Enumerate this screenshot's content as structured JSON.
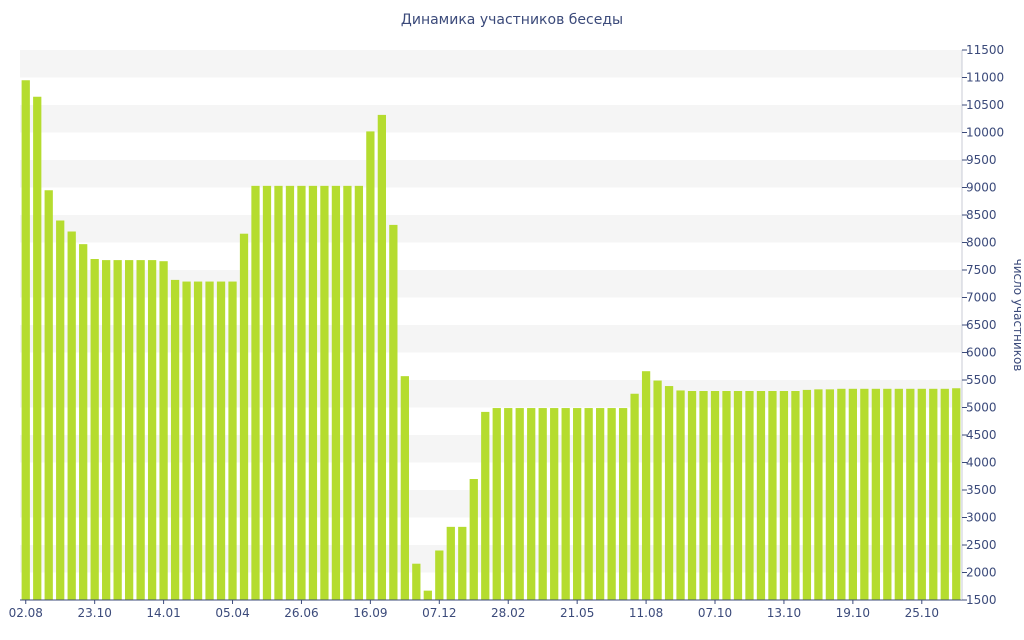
{
  "chart_data": {
    "type": "bar",
    "title": "Динамика участников беседы",
    "ylabel": "число участников",
    "xlabel": "",
    "ylim": [
      1500,
      11500
    ],
    "y_ticks": [
      1500,
      2000,
      2500,
      3000,
      3500,
      4000,
      4500,
      5000,
      5500,
      6000,
      6500,
      7000,
      7500,
      8000,
      8500,
      9000,
      9500,
      10000,
      10500,
      11000,
      11500
    ],
    "y_axis_side": "right",
    "x_tick_labels": [
      {
        "label": "02.08",
        "index": 0
      },
      {
        "label": "23.10",
        "index": 6
      },
      {
        "label": "14.01",
        "index": 12
      },
      {
        "label": "05.04",
        "index": 18
      },
      {
        "label": "26.06",
        "index": 24
      },
      {
        "label": "16.09",
        "index": 30
      },
      {
        "label": "07.12",
        "index": 36
      },
      {
        "label": "28.02",
        "index": 42
      },
      {
        "label": "21.05",
        "index": 48
      },
      {
        "label": "11.08",
        "index": 54
      },
      {
        "label": "07.10",
        "index": 60
      },
      {
        "label": "13.10",
        "index": 66
      },
      {
        "label": "19.10",
        "index": 72
      },
      {
        "label": "25.10",
        "index": 78
      }
    ],
    "values": [
      10950,
      10650,
      8950,
      8400,
      8200,
      7970,
      7700,
      7680,
      7680,
      7680,
      7680,
      7680,
      7660,
      7320,
      7290,
      7290,
      7290,
      7290,
      7290,
      8160,
      9030,
      9030,
      9030,
      9030,
      9030,
      9030,
      9030,
      9030,
      9030,
      9030,
      10020,
      10320,
      8320,
      5570,
      2160,
      1670,
      2400,
      2830,
      2830,
      3700,
      4920,
      4990,
      4990,
      4990,
      4990,
      4990,
      4990,
      4990,
      4990,
      4990,
      4990,
      4990,
      4990,
      5250,
      5660,
      5490,
      5390,
      5310,
      5300,
      5300,
      5300,
      5300,
      5300,
      5300,
      5300,
      5300,
      5300,
      5300,
      5320,
      5330,
      5330,
      5340,
      5340,
      5340,
      5340,
      5340,
      5340,
      5340,
      5340,
      5340,
      5340,
      5350
    ],
    "grid": true,
    "colors": {
      "bar": "#b5dc2f",
      "band": "#f5f5f5",
      "text": "#3b4a7a",
      "axis": "#3b4a7a"
    }
  }
}
